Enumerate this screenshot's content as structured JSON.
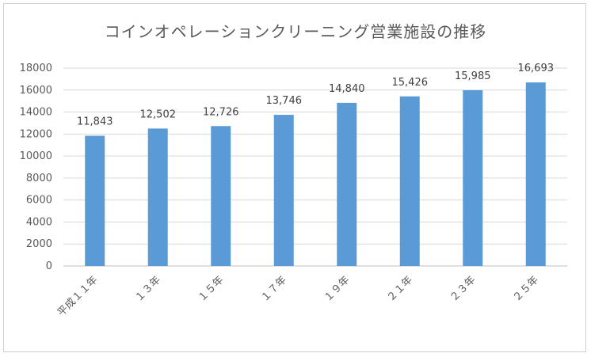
{
  "chart_data": {
    "type": "bar",
    "title": "コインオペレーションクリーニング営業施設の推移",
    "categories": [
      "平成１１年",
      "１３年",
      "１５年",
      "１７年",
      "１９年",
      "２１年",
      "２３年",
      "２５年"
    ],
    "values": [
      11843,
      12502,
      12726,
      13746,
      14840,
      15426,
      15985,
      16693
    ],
    "data_labels": [
      "11,843",
      "12,502",
      "12,726",
      "13,746",
      "14,840",
      "15,426",
      "15,985",
      "16,693"
    ],
    "yticks": [
      "0",
      "2000",
      "4000",
      "6000",
      "8000",
      "10000",
      "12000",
      "14000",
      "16000",
      "18000"
    ],
    "ylim": [
      0,
      18000
    ],
    "grid": true,
    "legend": "none",
    "bar_color": "#5b9bd5",
    "grid_color": "#d9d9d9"
  }
}
